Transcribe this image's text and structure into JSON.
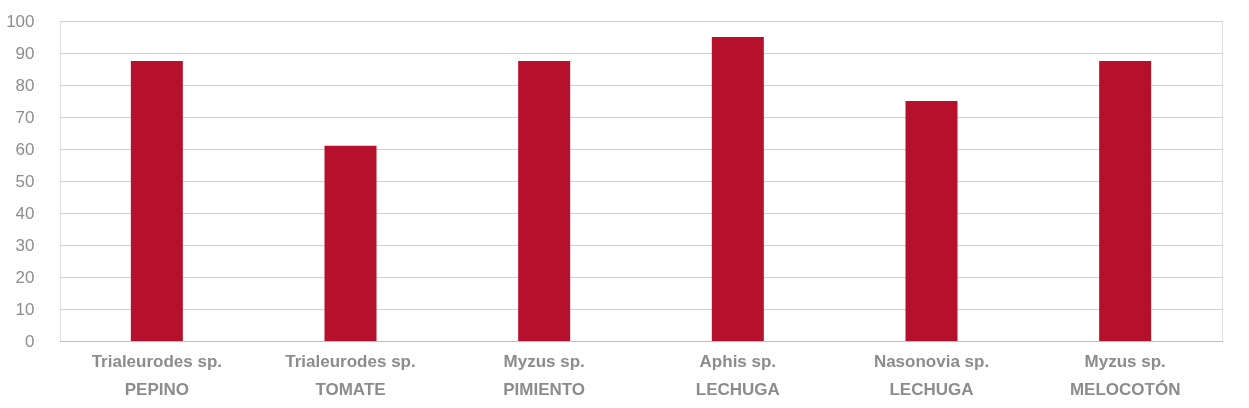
{
  "chart_data": {
    "type": "bar",
    "categories": [
      "Trialeurodes sp.\nPEPINO",
      "Trialeurodes sp.\nTOMATE",
      "Myzus sp.\nPIMIENTO",
      "Aphis sp.\nLECHUGA",
      "Nasonovia sp.\nLECHUGA",
      "Myzus sp.\nMELOCOTÓN"
    ],
    "values": [
      87.5,
      61,
      87.5,
      95,
      75,
      87.5
    ],
    "color": "#b5102c",
    "ylim": [
      0,
      100
    ],
    "yticks": [
      0,
      10,
      20,
      30,
      40,
      50,
      60,
      70,
      80,
      90,
      100
    ],
    "grid": "y"
  }
}
